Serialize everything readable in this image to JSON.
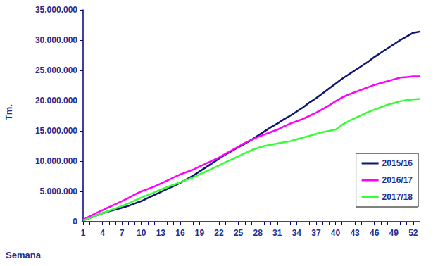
{
  "chart_data": {
    "type": "line",
    "x_label": "Semana",
    "y_label": "Tm.",
    "categories": [
      "1",
      null,
      null,
      "4",
      null,
      null,
      "7",
      null,
      null,
      "10",
      null,
      null,
      "13",
      null,
      null,
      "16",
      null,
      null,
      "19",
      null,
      null,
      "22",
      null,
      null,
      "25",
      null,
      null,
      "28",
      null,
      null,
      "31",
      null,
      null,
      "34",
      null,
      null,
      "37",
      null,
      null,
      "40",
      null,
      null,
      "43",
      null,
      null,
      "46",
      null,
      null,
      "49",
      null,
      null,
      "52",
      null
    ],
    "series": [
      {
        "name": "2015/16",
        "color": "#0d1670",
        "values": [
          200000,
          600000,
          1000000,
          1400000,
          1700000,
          2000000,
          2300000,
          2600000,
          3000000,
          3400000,
          3900000,
          4400000,
          4900000,
          5400000,
          5900000,
          6400000,
          7000000,
          7600000,
          8300000,
          9000000,
          9700000,
          10400000,
          11100000,
          11700000,
          12300000,
          12900000,
          13500000,
          14200000,
          14900000,
          15600000,
          16200000,
          16900000,
          17500000,
          18200000,
          18900000,
          19700000,
          20400000,
          21200000,
          22000000,
          22800000,
          23600000,
          24300000,
          25000000,
          25700000,
          26400000,
          27200000,
          27900000,
          28600000,
          29300000,
          30000000,
          30600000,
          31200000,
          31400000
        ]
      },
      {
        "name": "2016/17",
        "color": "#ff00ff",
        "values": [
          300000,
          900000,
          1400000,
          1900000,
          2400000,
          2900000,
          3400000,
          3900000,
          4500000,
          5000000,
          5400000,
          5800000,
          6300000,
          6800000,
          7300000,
          7800000,
          8200000,
          8600000,
          9100000,
          9600000,
          10100000,
          10600000,
          11200000,
          11800000,
          12400000,
          13000000,
          13500000,
          14000000,
          14400000,
          14800000,
          15200000,
          15700000,
          16200000,
          16600000,
          17000000,
          17500000,
          18000000,
          18600000,
          19200000,
          19900000,
          20500000,
          21000000,
          21400000,
          21800000,
          22200000,
          22600000,
          22900000,
          23200000,
          23500000,
          23800000,
          23900000,
          24000000,
          24000000
        ]
      },
      {
        "name": "2017/18",
        "color": "#33ff33",
        "values": [
          200000,
          600000,
          1000000,
          1400000,
          1800000,
          2200000,
          2600000,
          3000000,
          3500000,
          4000000,
          4400000,
          4800000,
          5300000,
          5700000,
          6100000,
          6500000,
          6900000,
          7300000,
          7800000,
          8300000,
          8800000,
          9300000,
          9800000,
          10300000,
          10800000,
          11300000,
          11800000,
          12200000,
          12500000,
          12700000,
          12900000,
          13100000,
          13300000,
          13600000,
          13900000,
          14200000,
          14500000,
          14800000,
          15000000,
          15200000,
          16000000,
          16600000,
          17100000,
          17600000,
          18100000,
          18500000,
          18900000,
          19300000,
          19600000,
          19900000,
          20100000,
          20200000,
          20300000
        ]
      }
    ],
    "ylim": [
      0,
      35000000
    ],
    "yticks": [
      0,
      {
        "value": 5000000,
        "label": "5.000.000"
      },
      {
        "value": 10000000,
        "label": "10.000.000"
      },
      {
        "value": 15000000,
        "label": "15.000.000"
      },
      {
        "value": 20000000,
        "label": "20.000.000"
      },
      {
        "value": 25000000,
        "label": "25.000.000"
      },
      {
        "value": 30000000,
        "label": "30.000.000"
      },
      {
        "value": 35000000,
        "label": "35.000.000"
      }
    ],
    "grid": false,
    "legend": "lower right"
  }
}
